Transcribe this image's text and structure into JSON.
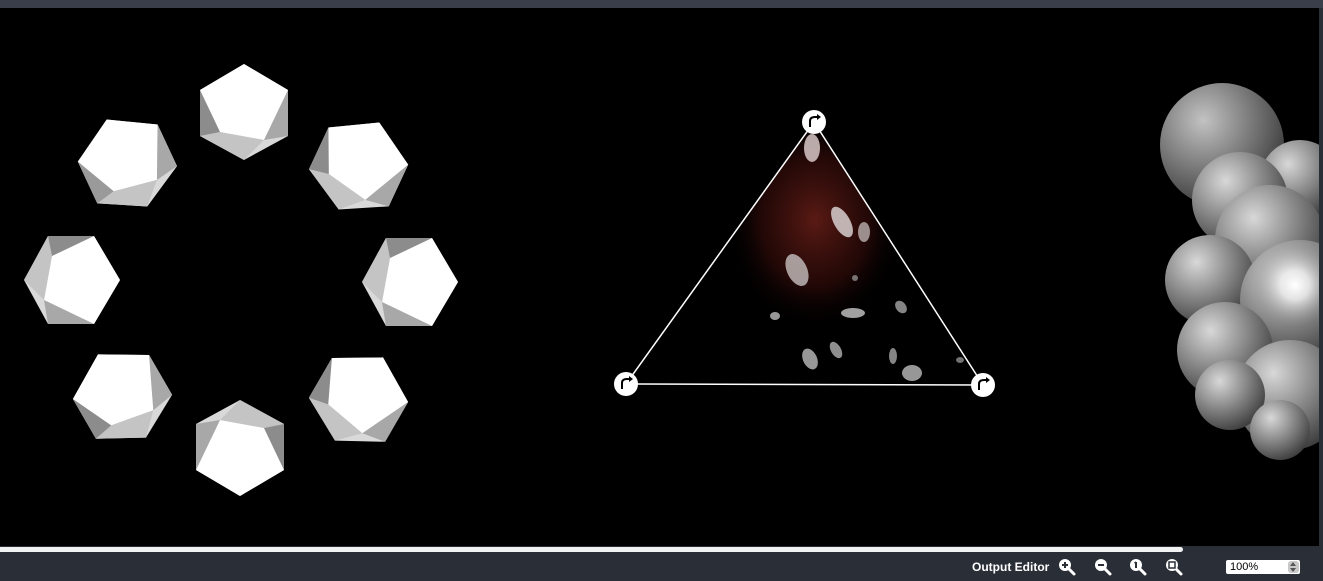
{
  "bottom_bar": {
    "output_editor_label": "Output Editor",
    "zoom_value": "100%"
  },
  "icons": {
    "zoom_in": "zoom-in-icon",
    "zoom_out": "zoom-out-icon",
    "zoom_actual": "zoom-actual-size-icon",
    "zoom_fit": "zoom-fit-icon",
    "rotate_handle": "rotate-handle-icon"
  },
  "progress": {
    "fraction": 0.894
  },
  "colors": {
    "canvas_background": "#000000",
    "toolbar_background": "#2a2e37",
    "progress_fill": "#f2f2f2",
    "triangle_outline": "#ffffff",
    "triangle_glow": "#5a1a14"
  }
}
